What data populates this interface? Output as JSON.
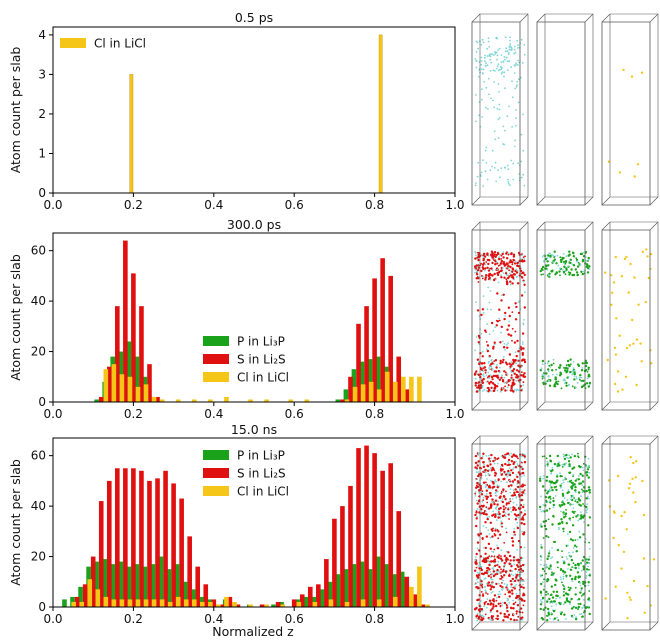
{
  "colors": {
    "P": "#1aa31a",
    "S": "#e01010",
    "Cl": "#f5c518",
    "Li": "#7fd6d6",
    "frame": "#555555"
  },
  "figure": {
    "xlabel": "Normalized z",
    "ylabel": "Atom count per slab"
  },
  "chart_data": [
    {
      "type": "bar",
      "title": "0.5 ps",
      "xlabel": "",
      "ylabel": "Atom count per slab",
      "xlim": [
        0.0,
        1.0
      ],
      "ylim": [
        0,
        4.2
      ],
      "xticks": [
        "0.0",
        "0.2",
        "0.4",
        "0.6",
        "0.8",
        "1.0"
      ],
      "yticks": [
        "0",
        "1",
        "2",
        "3",
        "4"
      ],
      "legend_position": "top-left",
      "series": [
        {
          "name": "Cl in LiCl",
          "key": "Cl",
          "points": [
            [
              0.195,
              3
            ],
            [
              0.815,
              4
            ]
          ]
        }
      ]
    },
    {
      "type": "bar",
      "title": "300.0 ps",
      "xlabel": "",
      "ylabel": "Atom count per slab",
      "xlim": [
        0.0,
        1.0
      ],
      "ylim": [
        0,
        67
      ],
      "xticks": [
        "0.0",
        "0.2",
        "0.4",
        "0.6",
        "0.8",
        "1.0"
      ],
      "yticks": [
        "0",
        "20",
        "40",
        "60"
      ],
      "legend_position": "center",
      "series": [
        {
          "name": "P in Li₃P",
          "key": "P",
          "points": [
            [
              0.12,
              1
            ],
            [
              0.14,
              8
            ],
            [
              0.16,
              18
            ],
            [
              0.18,
              20
            ],
            [
              0.2,
              24
            ],
            [
              0.22,
              18
            ],
            [
              0.24,
              10
            ],
            [
              0.26,
              2
            ],
            [
              0.72,
              1
            ],
            [
              0.74,
              5
            ],
            [
              0.76,
              13
            ],
            [
              0.78,
              16
            ],
            [
              0.8,
              17
            ],
            [
              0.82,
              18
            ],
            [
              0.84,
              14
            ],
            [
              0.86,
              6
            ],
            [
              0.88,
              1
            ]
          ]
        },
        {
          "name": "S in Li₂S",
          "key": "S",
          "points": [
            [
              0.12,
              2
            ],
            [
              0.14,
              14
            ],
            [
              0.16,
              38
            ],
            [
              0.18,
              64
            ],
            [
              0.2,
              51
            ],
            [
              0.22,
              38
            ],
            [
              0.24,
              15
            ],
            [
              0.26,
              2
            ],
            [
              0.72,
              1
            ],
            [
              0.74,
              10
            ],
            [
              0.76,
              31
            ],
            [
              0.78,
              38
            ],
            [
              0.8,
              49
            ],
            [
              0.82,
              57
            ],
            [
              0.84,
              50
            ],
            [
              0.86,
              18
            ],
            [
              0.88,
              5
            ]
          ]
        },
        {
          "name": "Cl in LiCl",
          "key": "Cl",
          "points": [
            [
              0.12,
              13
            ],
            [
              0.14,
              15
            ],
            [
              0.16,
              11
            ],
            [
              0.18,
              10
            ],
            [
              0.2,
              6
            ],
            [
              0.22,
              7
            ],
            [
              0.24,
              2
            ],
            [
              0.26,
              1
            ],
            [
              0.3,
              1
            ],
            [
              0.34,
              1
            ],
            [
              0.38,
              1
            ],
            [
              0.42,
              2
            ],
            [
              0.48,
              1
            ],
            [
              0.52,
              1
            ],
            [
              0.58,
              1
            ],
            [
              0.62,
              1
            ],
            [
              0.72,
              1
            ],
            [
              0.74,
              6
            ],
            [
              0.76,
              7
            ],
            [
              0.78,
              8
            ],
            [
              0.8,
              5
            ],
            [
              0.82,
              12
            ],
            [
              0.84,
              8
            ],
            [
              0.86,
              10
            ],
            [
              0.88,
              10
            ],
            [
              0.9,
              10
            ]
          ]
        }
      ]
    },
    {
      "type": "bar",
      "title": "15.0 ns",
      "xlabel": "Normalized z",
      "ylabel": "Atom count per slab",
      "xlim": [
        0.0,
        1.0
      ],
      "ylim": [
        0,
        67
      ],
      "xticks": [
        "0.0",
        "0.2",
        "0.4",
        "0.6",
        "0.8",
        "1.0"
      ],
      "yticks": [
        "0",
        "20",
        "40",
        "60"
      ],
      "legend_position": "top-center",
      "series": [
        {
          "name": "P in Li₃P",
          "key": "P",
          "points": [
            [
              0.04,
              3
            ],
            [
              0.06,
              4
            ],
            [
              0.08,
              8
            ],
            [
              0.1,
              16
            ],
            [
              0.12,
              18
            ],
            [
              0.14,
              19
            ],
            [
              0.16,
              17
            ],
            [
              0.18,
              18
            ],
            [
              0.2,
              16
            ],
            [
              0.22,
              17
            ],
            [
              0.24,
              16
            ],
            [
              0.26,
              17
            ],
            [
              0.28,
              20
            ],
            [
              0.3,
              15
            ],
            [
              0.32,
              17
            ],
            [
              0.34,
              10
            ],
            [
              0.36,
              7
            ],
            [
              0.38,
              4
            ],
            [
              0.4,
              3
            ],
            [
              0.42,
              1
            ],
            [
              0.44,
              3
            ],
            [
              0.46,
              1
            ],
            [
              0.5,
              1
            ],
            [
              0.54,
              1
            ],
            [
              0.56,
              1
            ],
            [
              0.58,
              2
            ],
            [
              0.62,
              3
            ],
            [
              0.64,
              4
            ],
            [
              0.66,
              4
            ],
            [
              0.68,
              7
            ],
            [
              0.7,
              10
            ],
            [
              0.72,
              13
            ],
            [
              0.74,
              15
            ],
            [
              0.76,
              17
            ],
            [
              0.78,
              18
            ],
            [
              0.8,
              15
            ],
            [
              0.82,
              20
            ],
            [
              0.84,
              17
            ],
            [
              0.86,
              13
            ],
            [
              0.88,
              14
            ],
            [
              0.9,
              5
            ],
            [
              0.92,
              2
            ]
          ]
        },
        {
          "name": "S in Li₂S",
          "key": "S",
          "points": [
            [
              0.06,
              4
            ],
            [
              0.08,
              9
            ],
            [
              0.1,
              20
            ],
            [
              0.12,
              42
            ],
            [
              0.14,
              50
            ],
            [
              0.16,
              55
            ],
            [
              0.18,
              55
            ],
            [
              0.2,
              55
            ],
            [
              0.22,
              54
            ],
            [
              0.24,
              50
            ],
            [
              0.26,
              51
            ],
            [
              0.28,
              54
            ],
            [
              0.3,
              49
            ],
            [
              0.32,
              43
            ],
            [
              0.34,
              28
            ],
            [
              0.36,
              16
            ],
            [
              0.38,
              9
            ],
            [
              0.4,
              3
            ],
            [
              0.42,
              1
            ],
            [
              0.44,
              4
            ],
            [
              0.46,
              1
            ],
            [
              0.52,
              1
            ],
            [
              0.56,
              2
            ],
            [
              0.6,
              3
            ],
            [
              0.62,
              5
            ],
            [
              0.64,
              8
            ],
            [
              0.66,
              9
            ],
            [
              0.68,
              19
            ],
            [
              0.7,
              35
            ],
            [
              0.72,
              40
            ],
            [
              0.74,
              48
            ],
            [
              0.76,
              63
            ],
            [
              0.78,
              64
            ],
            [
              0.8,
              61
            ],
            [
              0.82,
              54
            ],
            [
              0.84,
              57
            ],
            [
              0.86,
              38
            ],
            [
              0.88,
              12
            ],
            [
              0.9,
              5
            ],
            [
              0.92,
              1
            ]
          ]
        },
        {
          "name": "Cl in LiCl",
          "key": "Cl",
          "points": [
            [
              0.04,
              2
            ],
            [
              0.06,
              2
            ],
            [
              0.08,
              11
            ],
            [
              0.1,
              7
            ],
            [
              0.12,
              4
            ],
            [
              0.14,
              3
            ],
            [
              0.16,
              3
            ],
            [
              0.18,
              3
            ],
            [
              0.2,
              3
            ],
            [
              0.22,
              3
            ],
            [
              0.24,
              3
            ],
            [
              0.26,
              3
            ],
            [
              0.28,
              2
            ],
            [
              0.3,
              4
            ],
            [
              0.32,
              3
            ],
            [
              0.34,
              3
            ],
            [
              0.36,
              2
            ],
            [
              0.38,
              2
            ],
            [
              0.4,
              1
            ],
            [
              0.42,
              4
            ],
            [
              0.44,
              2
            ],
            [
              0.48,
              1
            ],
            [
              0.52,
              1
            ],
            [
              0.56,
              1
            ],
            [
              0.6,
              2
            ],
            [
              0.64,
              2
            ],
            [
              0.68,
              3
            ],
            [
              0.72,
              2
            ],
            [
              0.76,
              3
            ],
            [
              0.8,
              3
            ],
            [
              0.84,
              4
            ],
            [
              0.88,
              8
            ],
            [
              0.9,
              16
            ],
            [
              0.92,
              1
            ]
          ]
        }
      ]
    }
  ],
  "snapshots": [
    {
      "panel": 0,
      "boxes": [
        {
          "species": [
            "Li"
          ],
          "density": "sparse",
          "bands": [
            [
              0.08,
              0.28,
              120
            ],
            [
              0.28,
              0.72,
              60
            ],
            [
              0.72,
              0.9,
              40
            ]
          ]
        },
        {
          "species": [],
          "density": "empty",
          "bands": []
        },
        {
          "species": [
            "Cl"
          ],
          "density": "very-sparse",
          "bands": [
            [
              0.25,
              0.3,
              3
            ],
            [
              0.75,
              0.85,
              4
            ]
          ]
        }
      ]
    },
    {
      "panel": 1,
      "boxes": [
        {
          "species": [
            "Li",
            "S"
          ],
          "density": "dense",
          "bands": [
            [
              0.12,
              0.28,
              250
            ],
            [
              0.72,
              0.9,
              250
            ],
            [
              0.28,
              0.72,
              120
            ]
          ]
        },
        {
          "species": [
            "P",
            "Li"
          ],
          "density": "medium",
          "bands": [
            [
              0.12,
              0.26,
              140
            ],
            [
              0.72,
              0.88,
              140
            ]
          ]
        },
        {
          "species": [
            "Cl"
          ],
          "density": "sparse",
          "bands": [
            [
              0.1,
              0.9,
              40
            ]
          ]
        }
      ]
    },
    {
      "panel": 2,
      "boxes": [
        {
          "species": [
            "Li",
            "S"
          ],
          "density": "dense",
          "bands": [
            [
              0.05,
              0.4,
              420
            ],
            [
              0.6,
              0.95,
              420
            ],
            [
              0.4,
              0.6,
              80
            ]
          ]
        },
        {
          "species": [
            "Li",
            "P"
          ],
          "density": "dense",
          "bands": [
            [
              0.05,
              0.4,
              260
            ],
            [
              0.6,
              0.95,
              260
            ],
            [
              0.4,
              0.6,
              60
            ]
          ]
        },
        {
          "species": [
            "Cl"
          ],
          "density": "sparse",
          "bands": [
            [
              0.05,
              0.95,
              35
            ]
          ]
        }
      ]
    }
  ]
}
